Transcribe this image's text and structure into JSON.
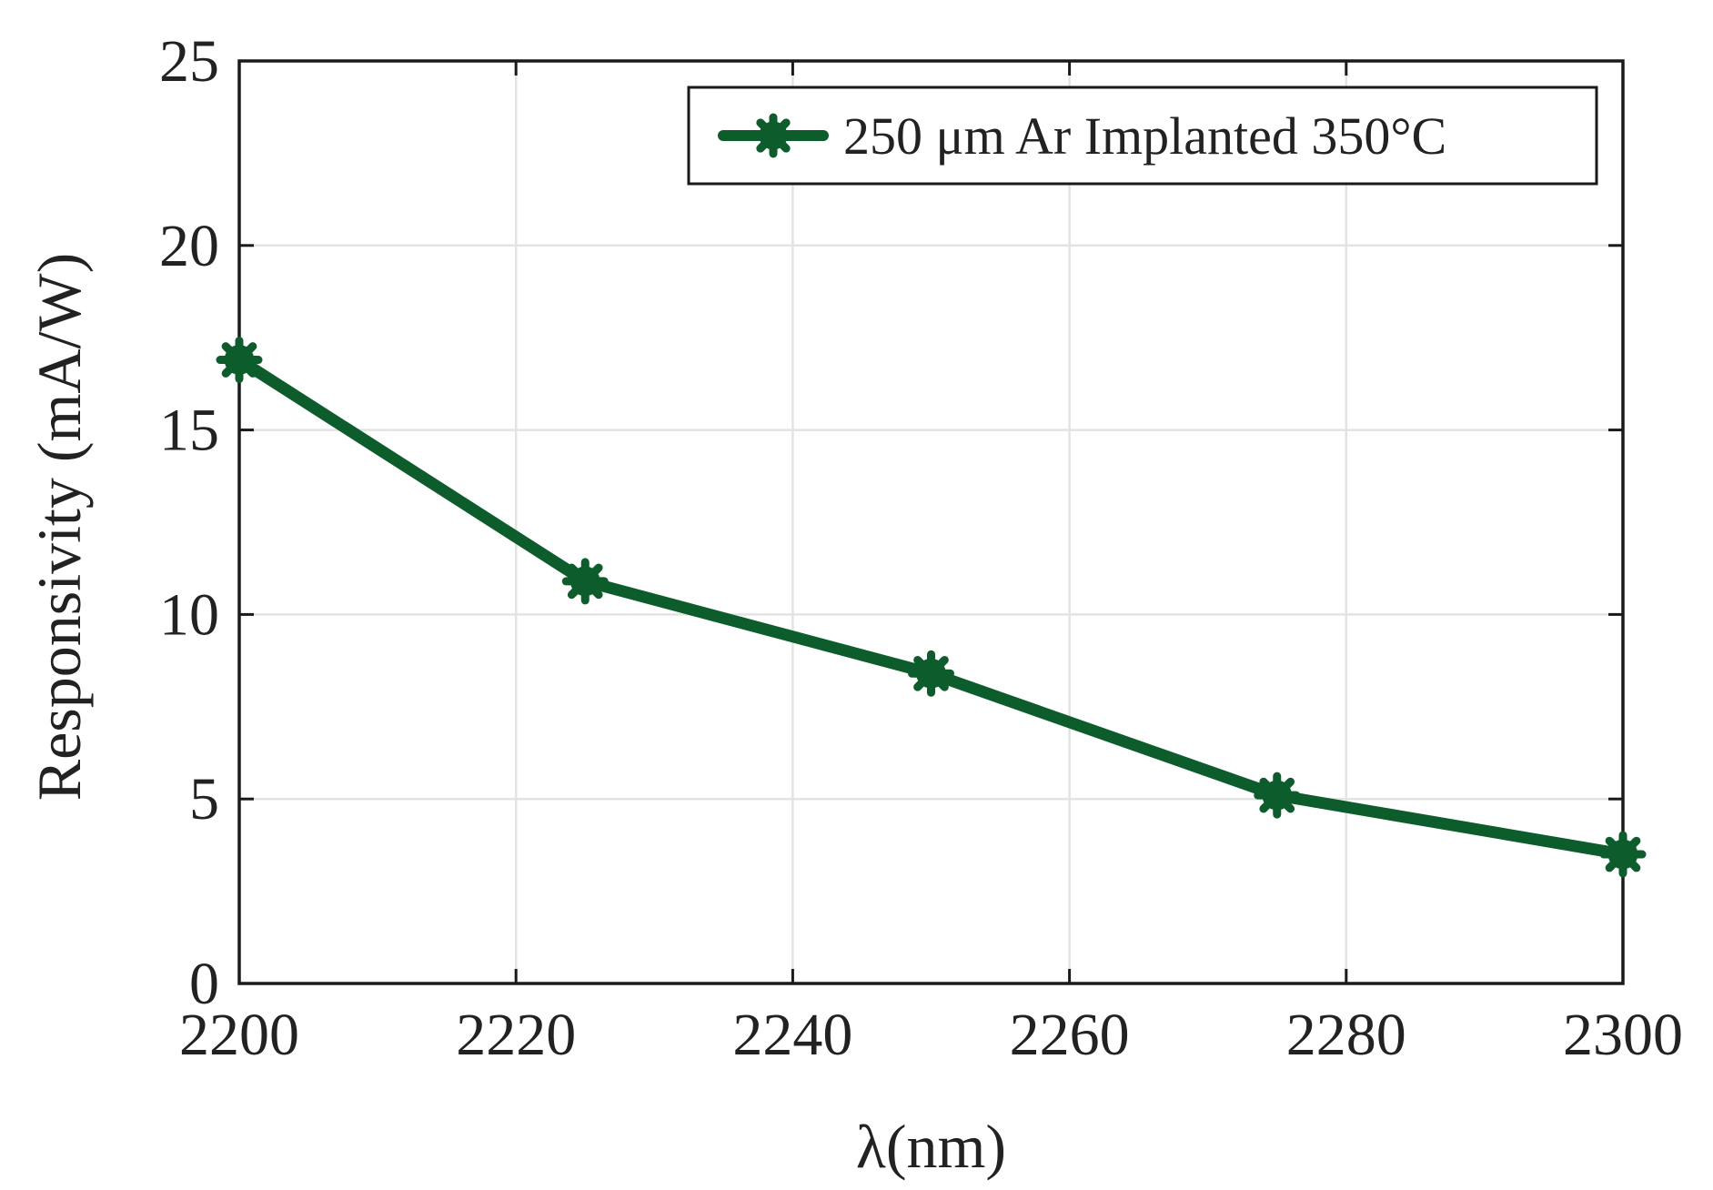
{
  "chart_data": {
    "type": "line",
    "title": "",
    "xlabel": "λ(nm)",
    "ylabel": "Responsivity (mA/W)",
    "xlim": [
      2200,
      2300
    ],
    "ylim": [
      0,
      25
    ],
    "xticks": [
      2200,
      2220,
      2240,
      2260,
      2280,
      2300
    ],
    "yticks": [
      0,
      5,
      10,
      15,
      20,
      25
    ],
    "grid": true,
    "legend_position": "top-right",
    "x": [
      2200,
      2225,
      2250,
      2275,
      2300
    ],
    "series": [
      {
        "name": "250 μm Ar Implanted 350°C",
        "values": [
          16.9,
          10.9,
          8.4,
          5.1,
          3.5
        ],
        "color": "#0d5c2c",
        "marker": "asterisk-star"
      }
    ]
  }
}
